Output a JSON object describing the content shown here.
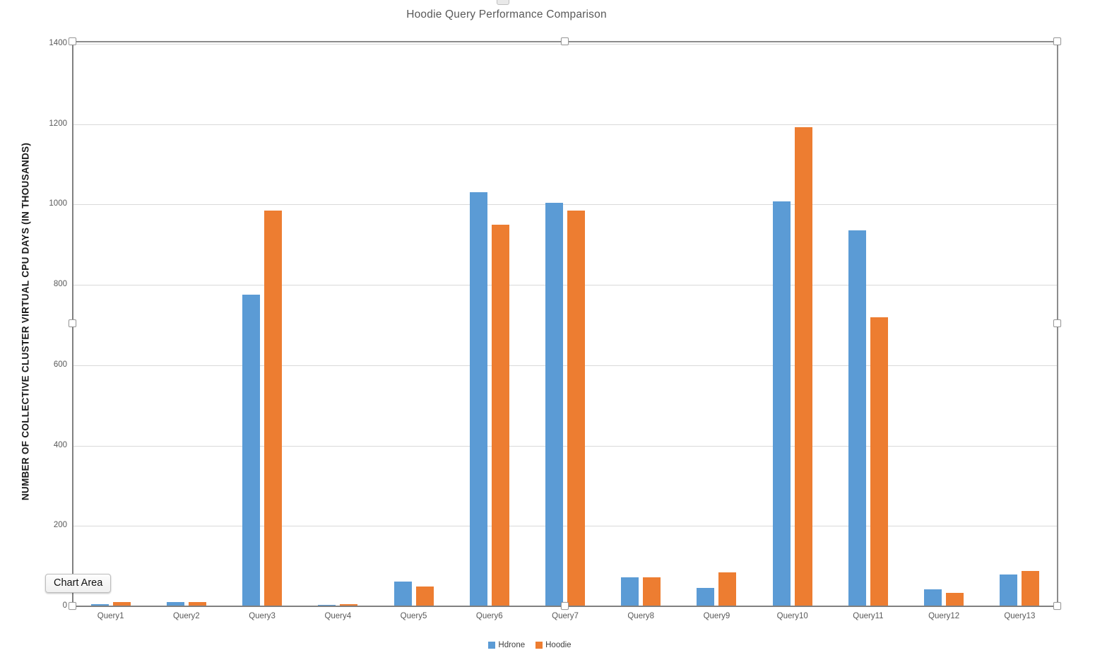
{
  "app": {
    "tooltip": "Chart Area"
  },
  "chart_data": {
    "type": "bar",
    "title": "Hoodie Query Performance Comparison",
    "xlabel": "",
    "ylabel": "NUMBER OF COLLECTIVE CLUSTER VIRTUAL CPU DAYS (IN THOUSANDS)",
    "categories": [
      "Query1",
      "Query2",
      "Query3",
      "Query4",
      "Query5",
      "Query6",
      "Query7",
      "Query8",
      "Query9",
      "Query10",
      "Query11",
      "Query12",
      "Query13"
    ],
    "series": [
      {
        "name": "Hdrone",
        "color": "#5B9BD5",
        "values": [
          5,
          10,
          775,
          4,
          62,
          1030,
          1005,
          72,
          46,
          1008,
          935,
          42,
          80
        ]
      },
      {
        "name": "Hoodie",
        "color": "#ED7D31",
        "values": [
          10,
          10,
          985,
          5,
          50,
          950,
          985,
          72,
          84,
          1192,
          720,
          33,
          88
        ]
      }
    ],
    "ylim": [
      0,
      1400
    ],
    "ytick_interval": 200,
    "grid": true,
    "legend_position": "bottom"
  },
  "colors": {
    "series_hdrone": "#5B9BD5",
    "series_hoodie": "#ED7D31",
    "gridline": "#d9d9d9",
    "axis": "#808080",
    "text_muted": "#595959"
  }
}
